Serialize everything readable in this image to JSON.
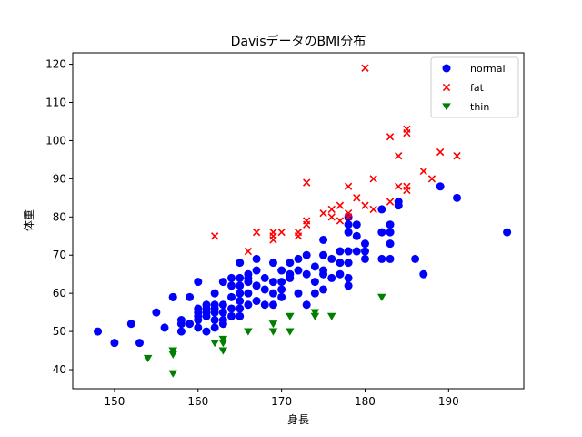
{
  "chart_data": {
    "type": "scatter",
    "title": "DavisデータのBMI分布",
    "xlabel": "身長",
    "ylabel": "体重",
    "xlim": [
      145,
      199
    ],
    "ylim": [
      35,
      123
    ],
    "xticks": [
      150,
      160,
      170,
      180,
      190
    ],
    "yticks": [
      40,
      50,
      60,
      70,
      80,
      90,
      100,
      110,
      120
    ],
    "legend_position": "top-right",
    "grid": false,
    "series": [
      {
        "name": "normal",
        "marker": "circle",
        "color": "#0000ff",
        "points": [
          [
            148,
            50
          ],
          [
            150,
            47
          ],
          [
            152,
            52
          ],
          [
            153,
            47
          ],
          [
            155,
            55
          ],
          [
            156,
            51
          ],
          [
            157,
            59
          ],
          [
            157,
            59
          ],
          [
            158,
            50
          ],
          [
            158,
            53
          ],
          [
            158,
            52
          ],
          [
            159,
            59
          ],
          [
            159,
            52
          ],
          [
            160,
            63
          ],
          [
            160,
            56
          ],
          [
            160,
            55
          ],
          [
            160,
            54
          ],
          [
            160,
            53
          ],
          [
            160,
            51
          ],
          [
            161,
            57
          ],
          [
            161,
            56
          ],
          [
            161,
            55
          ],
          [
            161,
            54
          ],
          [
            161,
            50
          ],
          [
            162,
            60
          ],
          [
            162,
            57
          ],
          [
            162,
            56
          ],
          [
            162,
            55
          ],
          [
            162,
            53
          ],
          [
            162,
            51
          ],
          [
            163,
            63
          ],
          [
            163,
            57
          ],
          [
            163,
            55
          ],
          [
            163,
            53
          ],
          [
            163,
            52
          ],
          [
            164,
            64
          ],
          [
            164,
            62
          ],
          [
            164,
            59
          ],
          [
            164,
            56
          ],
          [
            164,
            54
          ],
          [
            165,
            68
          ],
          [
            165,
            64
          ],
          [
            165,
            62
          ],
          [
            165,
            60
          ],
          [
            165,
            58
          ],
          [
            165,
            56
          ],
          [
            165,
            54
          ],
          [
            166,
            65
          ],
          [
            166,
            64
          ],
          [
            166,
            63
          ],
          [
            166,
            60
          ],
          [
            166,
            57
          ],
          [
            167,
            69
          ],
          [
            167,
            66
          ],
          [
            167,
            62
          ],
          [
            167,
            58
          ],
          [
            168,
            64
          ],
          [
            168,
            61
          ],
          [
            168,
            57
          ],
          [
            169,
            68
          ],
          [
            169,
            63
          ],
          [
            169,
            60
          ],
          [
            169,
            57
          ],
          [
            170,
            66
          ],
          [
            170,
            63
          ],
          [
            170,
            61
          ],
          [
            170,
            59
          ],
          [
            171,
            68
          ],
          [
            171,
            65
          ],
          [
            171,
            64
          ],
          [
            172,
            69
          ],
          [
            172,
            66
          ],
          [
            172,
            60
          ],
          [
            173,
            70
          ],
          [
            173,
            65
          ],
          [
            173,
            57
          ],
          [
            174,
            67
          ],
          [
            174,
            63
          ],
          [
            174,
            60
          ],
          [
            175,
            74
          ],
          [
            175,
            70
          ],
          [
            175,
            66
          ],
          [
            175,
            65
          ],
          [
            175,
            61
          ],
          [
            176,
            69
          ],
          [
            176,
            64
          ],
          [
            177,
            71
          ],
          [
            177,
            68
          ],
          [
            177,
            65
          ],
          [
            178,
            80
          ],
          [
            178,
            78
          ],
          [
            178,
            76
          ],
          [
            178,
            71
          ],
          [
            178,
            68
          ],
          [
            178,
            64
          ],
          [
            178,
            62
          ],
          [
            179,
            78
          ],
          [
            179,
            75
          ],
          [
            179,
            71
          ],
          [
            180,
            73
          ],
          [
            180,
            71
          ],
          [
            180,
            69
          ],
          [
            182,
            82
          ],
          [
            182,
            76
          ],
          [
            182,
            69
          ],
          [
            183,
            78
          ],
          [
            183,
            76
          ],
          [
            183,
            73
          ],
          [
            183,
            69
          ],
          [
            184,
            84
          ],
          [
            184,
            83
          ],
          [
            186,
            69
          ],
          [
            187,
            65
          ],
          [
            189,
            88
          ],
          [
            191,
            85
          ],
          [
            197,
            76
          ]
        ]
      },
      {
        "name": "fat",
        "marker": "x",
        "color": "#ff0000",
        "points": [
          [
            162,
            75
          ],
          [
            166,
            71
          ],
          [
            167,
            76
          ],
          [
            169,
            76
          ],
          [
            169,
            75
          ],
          [
            169,
            74
          ],
          [
            170,
            76
          ],
          [
            172,
            76
          ],
          [
            172,
            75
          ],
          [
            173,
            89
          ],
          [
            173,
            79
          ],
          [
            173,
            78
          ],
          [
            175,
            81
          ],
          [
            176,
            82
          ],
          [
            176,
            80
          ],
          [
            177,
            83
          ],
          [
            177,
            79
          ],
          [
            178,
            88
          ],
          [
            178,
            81
          ],
          [
            178,
            80
          ],
          [
            179,
            85
          ],
          [
            180,
            119
          ],
          [
            180,
            83
          ],
          [
            181,
            90
          ],
          [
            181,
            82
          ],
          [
            183,
            101
          ],
          [
            183,
            84
          ],
          [
            184,
            96
          ],
          [
            184,
            88
          ],
          [
            185,
            103
          ],
          [
            185,
            102
          ],
          [
            185,
            88
          ],
          [
            185,
            87
          ],
          [
            187,
            92
          ],
          [
            188,
            90
          ],
          [
            189,
            97
          ],
          [
            191,
            96
          ]
        ]
      },
      {
        "name": "thin",
        "marker": "triangle-down",
        "color": "#008000",
        "points": [
          [
            154,
            43
          ],
          [
            157,
            45
          ],
          [
            157,
            44
          ],
          [
            157,
            39
          ],
          [
            162,
            47
          ],
          [
            163,
            48
          ],
          [
            163,
            47
          ],
          [
            163,
            45
          ],
          [
            166,
            50
          ],
          [
            169,
            52
          ],
          [
            169,
            50
          ],
          [
            171,
            54
          ],
          [
            171,
            50
          ],
          [
            174,
            55
          ],
          [
            174,
            54
          ],
          [
            176,
            54
          ],
          [
            182,
            59
          ]
        ]
      }
    ]
  }
}
